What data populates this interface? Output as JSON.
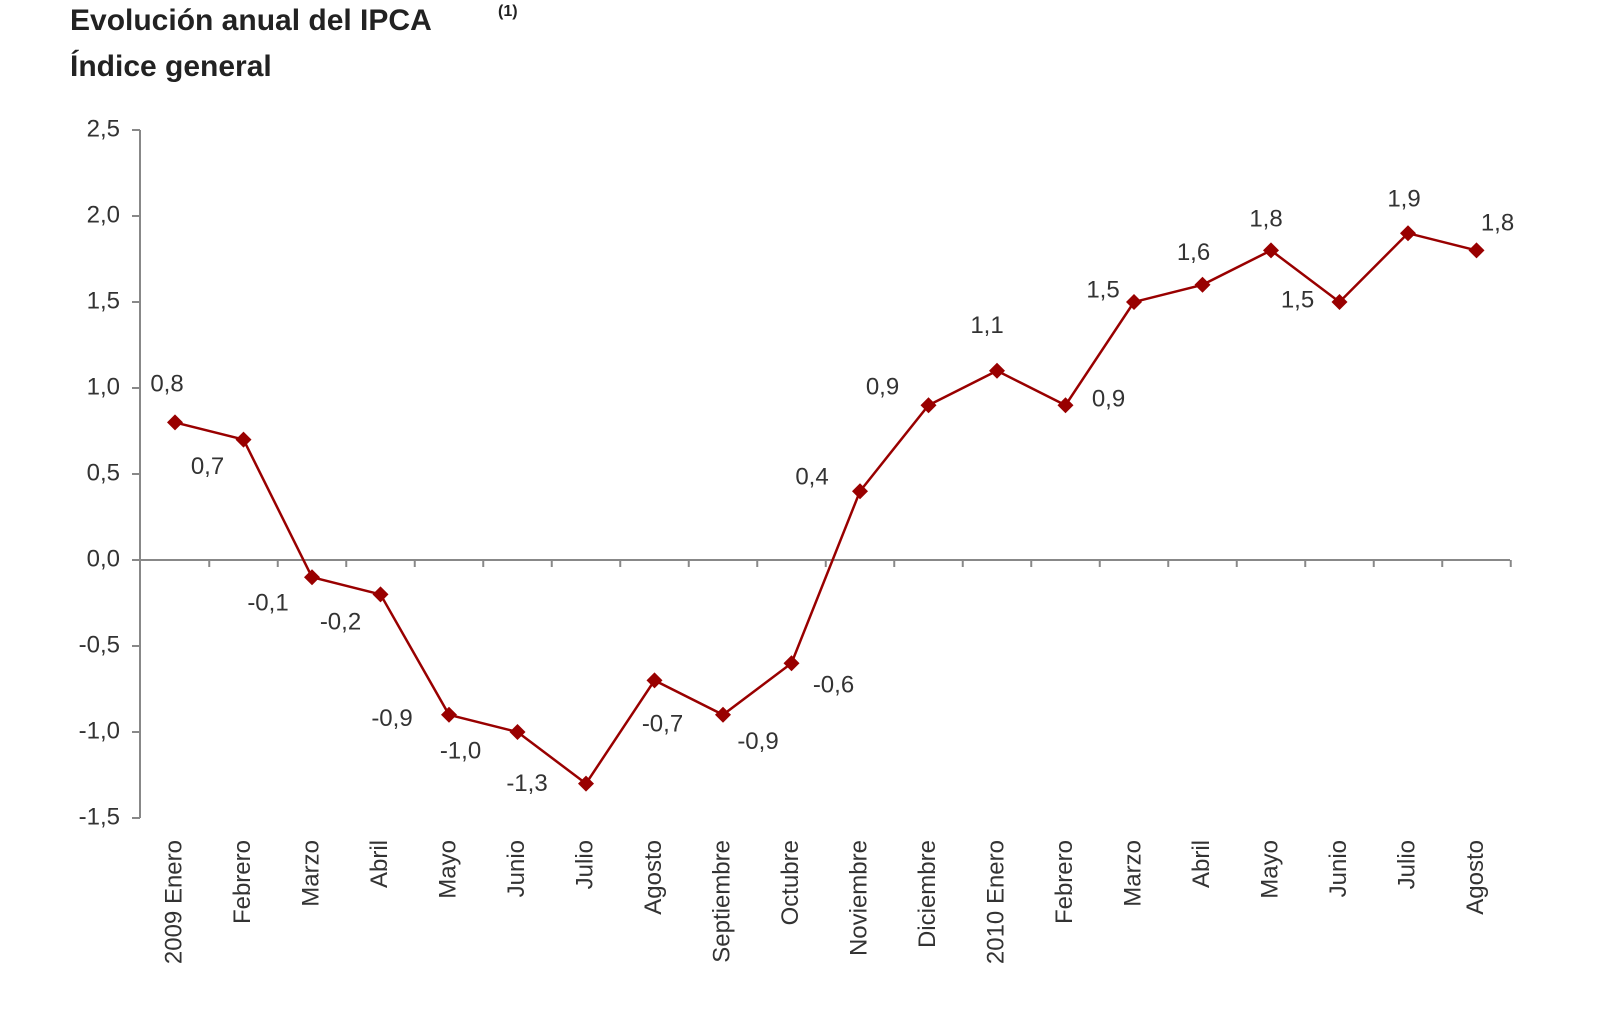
{
  "chart_data": {
    "type": "line",
    "title": "Evolución anual del IPCA",
    "title_note": "(1)",
    "subtitle": "Índice general",
    "categories": [
      "2009 Enero",
      "Febrero",
      "Marzo",
      "Abril",
      "Mayo",
      "Junio",
      "Julio",
      "Agosto",
      "Septiembre",
      "Octubre",
      "Noviembre",
      "Diciembre",
      "2010 Enero",
      "Febrero",
      "Marzo",
      "Abril",
      "Mayo",
      "Junio",
      "Julio",
      "Agosto"
    ],
    "series": [
      {
        "name": "IPCA",
        "color": "#990000",
        "values": [
          0.8,
          0.7,
          -0.1,
          -0.2,
          -0.9,
          -1.0,
          -1.3,
          -0.7,
          -0.9,
          -0.6,
          0.4,
          0.9,
          1.1,
          0.9,
          1.5,
          1.6,
          1.8,
          1.5,
          1.9,
          1.8
        ],
        "value_labels": [
          "0,8",
          "0,7",
          "-0,1",
          "-0,2",
          "-0,9",
          "-1,0",
          "-1,3",
          "-0,7",
          "-0,9",
          "-0,6",
          "0,4",
          "0,9",
          "1,1",
          "0,9",
          "1,5",
          "1,6",
          "1,8",
          "1,5",
          "1,9",
          "1,8"
        ]
      }
    ],
    "ylim": [
      -1.5,
      2.5
    ],
    "yticks": [
      {
        "value": -1.5,
        "label": "-1,5"
      },
      {
        "value": -1.0,
        "label": "-1,0"
      },
      {
        "value": -0.5,
        "label": "-0,5"
      },
      {
        "value": 0.0,
        "label": "0,0"
      },
      {
        "value": 0.5,
        "label": "0,5"
      },
      {
        "value": 1.0,
        "label": "1,0"
      },
      {
        "value": 1.5,
        "label": "1,5"
      },
      {
        "value": 2.0,
        "label": "2,0"
      },
      {
        "value": 2.5,
        "label": "2,5"
      }
    ]
  }
}
